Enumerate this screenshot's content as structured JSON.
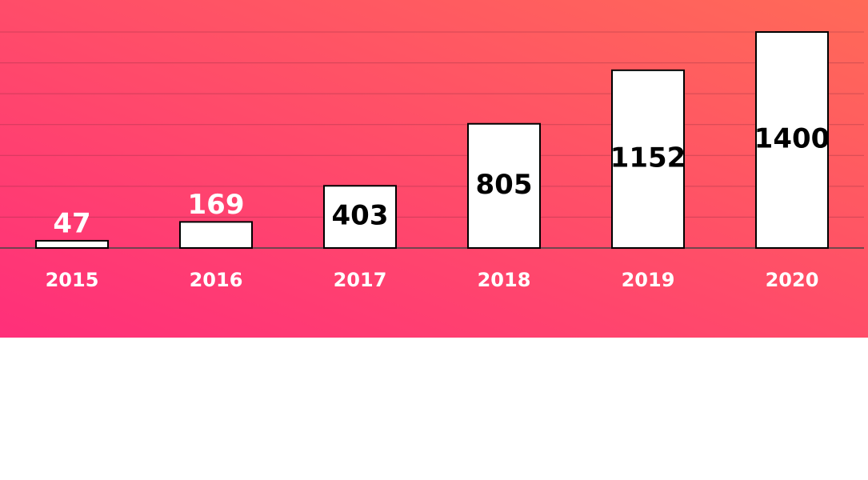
{
  "chart_data": {
    "type": "bar",
    "categories": [
      "2015",
      "2016",
      "2017",
      "2018",
      "2019",
      "2020"
    ],
    "values": [
      47,
      169,
      403,
      805,
      1152,
      1400
    ],
    "color": "#ffffff",
    "ylim": [
      0,
      1400
    ],
    "yticks": [
      0,
      200,
      400,
      600,
      800,
      1000,
      1200,
      1400
    ],
    "grid": true
  }
}
